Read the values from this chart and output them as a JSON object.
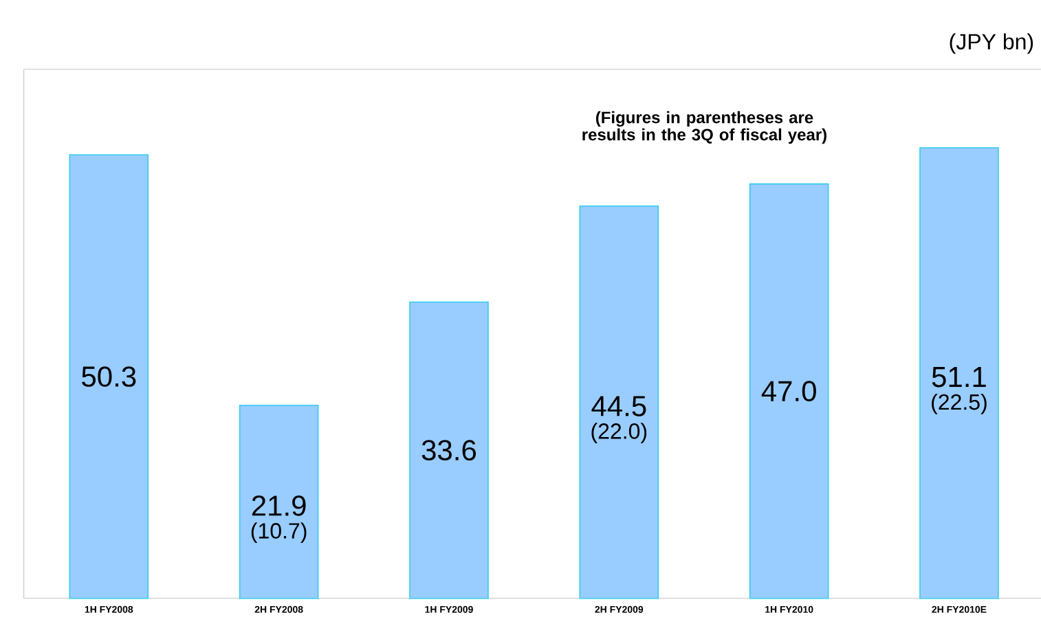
{
  "chart_data": {
    "type": "bar",
    "ylabel": "(JPY bn)",
    "categories": [
      "1H FY2008",
      "2H FY2008",
      "1H FY2009",
      "2H FY2009",
      "1H FY2010",
      "2H FY2010E"
    ],
    "values": [
      50.3,
      21.9,
      33.6,
      44.5,
      47.0,
      51.1
    ],
    "color": "#99ccff",
    "ylim": [
      0,
      60
    ],
    "data_labels": true,
    "value_labels": [
      "50.3",
      "21.9",
      "33.6",
      "44.5",
      "47.0",
      "51.1"
    ],
    "annotations": [
      "(Figures in parentheses are results in the 3Q of fiscal year)",
      "(10.7)",
      "(22.0)",
      "(22.5)"
    ]
  }
}
